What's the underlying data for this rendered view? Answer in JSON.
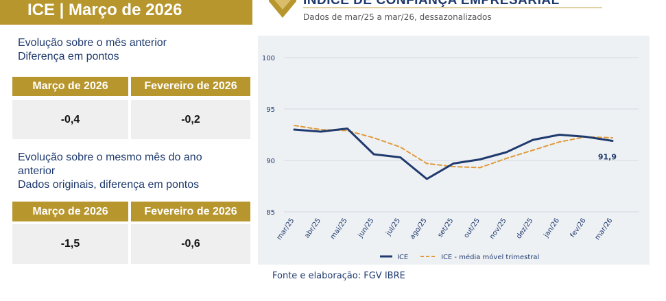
{
  "header": {
    "title": "ICE | Março de 2026"
  },
  "section1": {
    "label_line1": "Evolução sobre o mês anterior",
    "label_line2": "Diferença em pontos",
    "col1_header": "Março de 2026",
    "col2_header": "Fevereiro de 2026",
    "col1_value": "-0,4",
    "col2_value": "-0,2"
  },
  "section2": {
    "label_line1": "Evolução sobre o mesmo mês do ano",
    "label_line2": "anterior",
    "label_line3": "Dados originais, diferença em pontos",
    "col1_header": "Março de 2026",
    "col2_header": "Fevereiro de 2026",
    "col1_value": "-1,5",
    "col2_value": "-0,6"
  },
  "chart_heading": "ÍNDICE DE CONFIANÇA EMPRESARIAL",
  "chart_subtitle": "Dados de mar/25 a mar/26, dessazonalizados",
  "source": "Fonte e elaboração: FGV IBRE",
  "colors": {
    "gold": "#b8962e",
    "navy": "#1f3a6e",
    "orange": "#e09a3a"
  },
  "chart_data": {
    "type": "line",
    "categories": [
      "mar/25",
      "abr/25",
      "mai/25",
      "jun/25",
      "jul/25",
      "ago/25",
      "set/25",
      "out/25",
      "nov/25",
      "dez/25",
      "jan/26",
      "fev/26",
      "mar/26"
    ],
    "series": [
      {
        "name": "ICE",
        "values": [
          93.0,
          92.8,
          93.1,
          90.6,
          90.3,
          88.2,
          89.7,
          90.1,
          90.8,
          92.0,
          92.5,
          92.3,
          91.9
        ]
      },
      {
        "name": "ICE - média móvel trimestral",
        "values": [
          93.4,
          93.0,
          92.9,
          92.2,
          91.3,
          89.7,
          89.4,
          89.3,
          90.2,
          91.0,
          91.8,
          92.3,
          92.2
        ]
      }
    ],
    "yticks": [
      "100",
      "95",
      "90",
      "85"
    ],
    "ylim": [
      85,
      100
    ],
    "last_label": "91,9",
    "legend": {
      "s1": "ICE",
      "s2": "ICE - média móvel trimestral"
    }
  }
}
